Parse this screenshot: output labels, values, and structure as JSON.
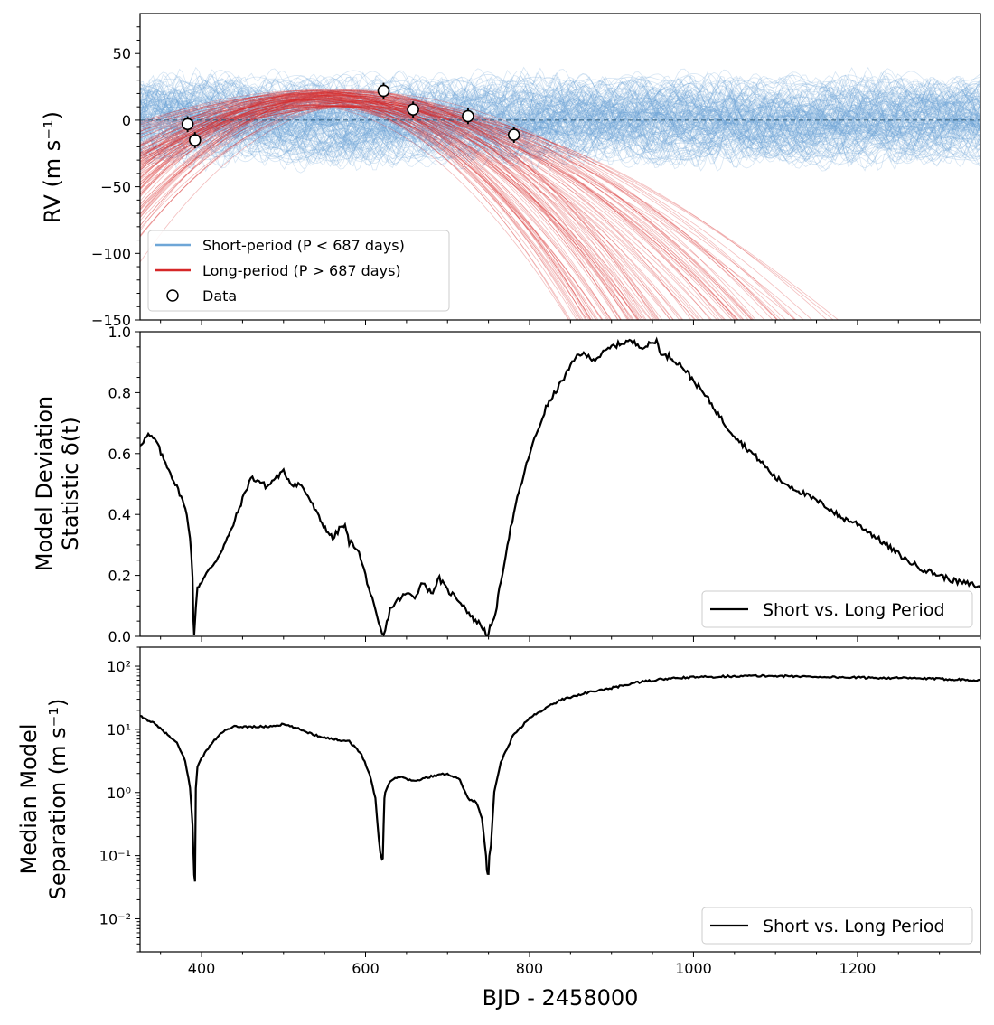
{
  "chart_data": [
    {
      "type": "line",
      "panel": "rv",
      "ylabel": "RV (m s⁻¹)",
      "xlim": [
        325,
        1350
      ],
      "ylim": [
        -150,
        80
      ],
      "yticks": [
        50,
        0,
        -50,
        -100,
        -150
      ],
      "ytick_labels": [
        "50",
        "0",
        "−50",
        "−100",
        "−150"
      ],
      "zero_line": 0,
      "series": [
        {
          "name": "Short-period (P < 687 days)",
          "color": "#6ea6d7",
          "kind": "model-draws"
        },
        {
          "name": "Long-period (P > 687 days)",
          "color": "#d62728",
          "kind": "model-draws"
        }
      ],
      "data_points": {
        "name": "Data",
        "x": [
          383,
          392,
          622,
          658,
          725,
          781
        ],
        "y": [
          -3,
          -15,
          22,
          8,
          3,
          -11
        ],
        "yerr": [
          6,
          6,
          6,
          6,
          6,
          6
        ]
      },
      "legend": {
        "location": "lower-left",
        "short_label": "Short-period (P <  687 days)",
        "long_label": "Long-period (P >  687 days)",
        "data_label": "Data"
      }
    },
    {
      "type": "line",
      "panel": "deviation",
      "ylabel_line1": "Model Deviation",
      "ylabel_line2": "Statistic δ(t)",
      "xlim": [
        325,
        1350
      ],
      "ylim": [
        0.0,
        1.0
      ],
      "yticks": [
        0.0,
        0.2,
        0.4,
        0.6,
        0.8,
        1.0
      ],
      "ytick_labels": [
        "0.0",
        "0.2",
        "0.4",
        "0.6",
        "0.8",
        "1.0"
      ],
      "series": [
        {
          "name": "Short vs. Long Period",
          "color": "#000000",
          "x": [
            325,
            335,
            345,
            352,
            360,
            368,
            375,
            382,
            386,
            389,
            390,
            391,
            393,
            395,
            400,
            410,
            420,
            435,
            450,
            460,
            470,
            480,
            490,
            500,
            510,
            520,
            530,
            545,
            560,
            570,
            575,
            580,
            590,
            600,
            606,
            612,
            616,
            620,
            622,
            624,
            630,
            640,
            650,
            660,
            670,
            680,
            690,
            700,
            710,
            720,
            730,
            740,
            745,
            750,
            752,
            755,
            760,
            765,
            775,
            785,
            800,
            820,
            840,
            860,
            880,
            900,
            920,
            940,
            955,
            962,
            970,
            985,
            1000,
            1020,
            1040,
            1060,
            1080,
            1100,
            1120,
            1140,
            1160,
            1180,
            1200,
            1220,
            1240,
            1260,
            1280,
            1300,
            1320,
            1340,
            1350
          ],
          "y": [
            0.63,
            0.66,
            0.64,
            0.59,
            0.55,
            0.5,
            0.46,
            0.4,
            0.33,
            0.2,
            0.05,
            0.0,
            0.1,
            0.16,
            0.18,
            0.22,
            0.26,
            0.34,
            0.45,
            0.52,
            0.51,
            0.49,
            0.52,
            0.54,
            0.5,
            0.5,
            0.46,
            0.38,
            0.32,
            0.36,
            0.36,
            0.31,
            0.29,
            0.2,
            0.14,
            0.08,
            0.04,
            0.01,
            0.0,
            0.02,
            0.09,
            0.12,
            0.14,
            0.13,
            0.18,
            0.14,
            0.19,
            0.15,
            0.13,
            0.1,
            0.06,
            0.04,
            0.02,
            0.0,
            0.03,
            0.04,
            0.1,
            0.18,
            0.33,
            0.45,
            0.6,
            0.75,
            0.84,
            0.93,
            0.91,
            0.95,
            0.97,
            0.95,
            0.97,
            0.92,
            0.92,
            0.89,
            0.84,
            0.77,
            0.69,
            0.63,
            0.58,
            0.52,
            0.49,
            0.46,
            0.43,
            0.39,
            0.37,
            0.33,
            0.29,
            0.25,
            0.22,
            0.2,
            0.18,
            0.17,
            0.16
          ]
        }
      ],
      "legend": {
        "location": "lower-right",
        "label": "Short vs. Long Period"
      }
    },
    {
      "type": "line",
      "panel": "separation",
      "yscale": "log",
      "ylabel_line1": "Median Model",
      "ylabel_line2": "Separation (m s⁻¹)",
      "xlabel": "BJD - 2458000",
      "xlim": [
        325,
        1350
      ],
      "ylim": [
        0.003,
        200
      ],
      "yticks": [
        0.01,
        0.1,
        1,
        10,
        100
      ],
      "ytick_labels": [
        "10⁻²",
        "10⁻¹",
        "10⁰",
        "10¹",
        "10²"
      ],
      "xticks": [
        400,
        600,
        800,
        1000,
        1200
      ],
      "xtick_labels": [
        "400",
        "600",
        "800",
        "1000",
        "1200"
      ],
      "series": [
        {
          "name": "Short vs. Long Period",
          "color": "#000000",
          "x": [
            325,
            340,
            355,
            370,
            380,
            386,
            389,
            390,
            391,
            392,
            393,
            395,
            400,
            410,
            425,
            440,
            460,
            480,
            500,
            520,
            540,
            560,
            580,
            595,
            605,
            612,
            616,
            618,
            620,
            621,
            622,
            623,
            624,
            626,
            630,
            640,
            660,
            680,
            700,
            715,
            725,
            735,
            742,
            747,
            748,
            749,
            750,
            751,
            753,
            757,
            765,
            780,
            800,
            820,
            840,
            870,
            900,
            930,
            960,
            990,
            1020,
            1060,
            1100,
            1150,
            1200,
            1250,
            1300,
            1350
          ],
          "y": [
            16,
            13,
            9,
            6,
            3.2,
            1.2,
            0.3,
            0.12,
            0.05,
            0.04,
            1.2,
            2.5,
            3.5,
            5.5,
            9,
            11,
            11,
            11,
            12,
            10,
            8,
            7,
            6.5,
            4,
            2,
            0.8,
            0.2,
            0.11,
            0.09,
            0.09,
            0.3,
            0.8,
            1.0,
            1.2,
            1.5,
            1.8,
            1.5,
            1.8,
            2.0,
            1.6,
            0.8,
            0.7,
            0.4,
            0.1,
            0.06,
            0.05,
            0.05,
            0.1,
            0.14,
            1.0,
            3.0,
            8.0,
            15,
            22,
            30,
            38,
            45,
            55,
            62,
            66,
            68,
            70,
            70,
            68,
            66,
            65,
            63,
            60
          ]
        }
      ],
      "legend": {
        "location": "lower-right",
        "label": "Short vs. Long Period"
      }
    }
  ]
}
